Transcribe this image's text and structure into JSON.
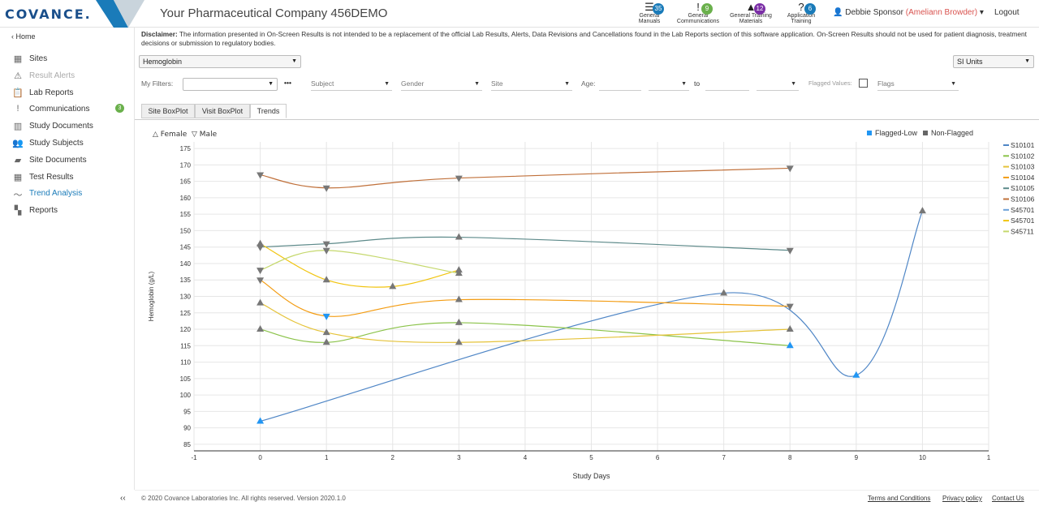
{
  "header": {
    "logo": "COVANCE.",
    "title": "Your Pharmaceutical Company 456DEMO",
    "icons": [
      {
        "label1": "General",
        "label2": "Manuals",
        "badge": "35",
        "color": "#1a7bb9",
        "glyph": "☰"
      },
      {
        "label1": "General",
        "label2": "Communications",
        "badge": "9",
        "color": "#6ab04c",
        "glyph": "!"
      },
      {
        "label1": "General Training",
        "label2": "Materials",
        "badge": "12",
        "color": "#7b2fa6",
        "glyph": "▲"
      },
      {
        "label1": "Application",
        "label2": "Training",
        "badge": "6",
        "color": "#1a7bb9",
        "glyph": "?"
      }
    ],
    "user": "Debbie Sponsor",
    "impersonating": "(Ameliann Browder)",
    "logout": "Logout"
  },
  "sidebar": {
    "home": "‹ Home",
    "items": [
      {
        "label": "Sites",
        "icon": "▦"
      },
      {
        "label": "Result Alerts",
        "icon": "⚠"
      },
      {
        "label": "Lab Reports",
        "icon": "📋"
      },
      {
        "label": "Communications",
        "icon": "!",
        "count": "3"
      },
      {
        "label": "Study Documents",
        "icon": "▥"
      },
      {
        "label": "Study Subjects",
        "icon": "👥"
      },
      {
        "label": "Site Documents",
        "icon": "▰"
      },
      {
        "label": "Test Results",
        "icon": "▦"
      },
      {
        "label": "Trend Analysis",
        "icon": "〜"
      },
      {
        "label": "Reports",
        "icon": "▚"
      }
    ],
    "collapse": "‹‹"
  },
  "disclaimer": {
    "label": "Disclaimer:",
    "text": " The information presented in On-Screen Results is not intended to be a replacement of the official Lab Results, Alerts, Data Revisions and Cancellations found in the Lab Reports section of this software application. On-Screen Results should not be used for patient diagnosis, treatment decisions or submission to regulatory bodies."
  },
  "test_select": "Hemoglobin",
  "units_select": "SI Units",
  "filters": {
    "my_filters": "My Filters:",
    "more": "•••",
    "subject": "Subject",
    "gender": "Gender",
    "site": "Site",
    "age": "Age:",
    "to": "to",
    "flagged": "Flagged Values:",
    "flags": "Flags"
  },
  "tabs": [
    "Site BoxPlot",
    "Visit BoxPlot",
    "Trends"
  ],
  "active_tab": "Trends",
  "gender_legend": {
    "female": "△ Female",
    "male": "▽ Male"
  },
  "flag_legend": {
    "low": "Flagged-Low",
    "non": "Non-Flagged",
    "low_color": "#2196f3",
    "non_color": "#666666"
  },
  "chart_data": {
    "type": "line",
    "xlabel": "Study Days",
    "ylabel": "Hemoglobin (g/L)",
    "xlim": [
      -1,
      11
    ],
    "ylim": [
      83,
      177
    ],
    "xticks": [
      "-1",
      "0",
      "1",
      "2",
      "3",
      "4",
      "5",
      "6",
      "7",
      "8",
      "9",
      "10",
      "1"
    ],
    "yticks": [
      85,
      90,
      95,
      100,
      105,
      110,
      115,
      120,
      125,
      130,
      135,
      140,
      145,
      150,
      155,
      160,
      165,
      170,
      175
    ],
    "series": [
      {
        "name": "S10101",
        "color": "#4f86c6",
        "points": [
          [
            0,
            92,
            "female",
            "low"
          ],
          [
            7,
            131,
            "female",
            "non"
          ],
          [
            9,
            106,
            "female",
            "low"
          ],
          [
            10,
            156,
            "female",
            "non"
          ]
        ]
      },
      {
        "name": "S10102",
        "color": "#8bc34a",
        "points": [
          [
            0,
            120,
            "female",
            "non"
          ],
          [
            1,
            116,
            "female",
            "non"
          ],
          [
            3,
            122,
            "female",
            "non"
          ],
          [
            8,
            115,
            "female",
            "low"
          ]
        ]
      },
      {
        "name": "S10103",
        "color": "#e5c33a",
        "points": [
          [
            0,
            128,
            "female",
            "non"
          ],
          [
            1,
            119,
            "female",
            "non"
          ],
          [
            3,
            116,
            "female",
            "non"
          ],
          [
            8,
            120,
            "female",
            "non"
          ]
        ]
      },
      {
        "name": "S10104",
        "color": "#f39c12",
        "points": [
          [
            0,
            135,
            "male",
            "non"
          ],
          [
            1,
            124,
            "male",
            "low"
          ],
          [
            3,
            129,
            "female",
            "non"
          ],
          [
            8,
            127,
            "male",
            "non"
          ]
        ]
      },
      {
        "name": "S10105",
        "color": "#5d8a8a",
        "points": [
          [
            0,
            145,
            "male",
            "non"
          ],
          [
            1,
            146,
            "male",
            "non"
          ],
          [
            3,
            148,
            "female",
            "non"
          ],
          [
            8,
            144,
            "male",
            "non"
          ]
        ]
      },
      {
        "name": "S10106",
        "color": "#c0703a",
        "points": [
          [
            0,
            167,
            "male",
            "non"
          ],
          [
            1,
            163,
            "male",
            "non"
          ],
          [
            3,
            166,
            "male",
            "non"
          ],
          [
            8,
            169,
            "male",
            "non"
          ]
        ]
      },
      {
        "name": "S45701",
        "color": "#6aa0d8",
        "points": []
      },
      {
        "name": "S45701",
        "color": "#f1c40f",
        "points": [
          [
            0,
            146,
            "female",
            "non"
          ],
          [
            1,
            135,
            "female",
            "non"
          ],
          [
            2,
            133,
            "female",
            "non"
          ],
          [
            3,
            138,
            "female",
            "non"
          ]
        ]
      },
      {
        "name": "S45711",
        "color": "#c5d86d",
        "points": [
          [
            0,
            138,
            "male",
            "non"
          ],
          [
            1,
            144,
            "male",
            "non"
          ],
          [
            3,
            137,
            "female",
            "non"
          ]
        ]
      }
    ]
  },
  "footer": {
    "copyright": "© 2020 Covance Laboratories Inc. All rights reserved.    Version 2020.1.0",
    "terms": "Terms and Conditions",
    "privacy": "Privacy policy",
    "contact": "Contact Us"
  }
}
